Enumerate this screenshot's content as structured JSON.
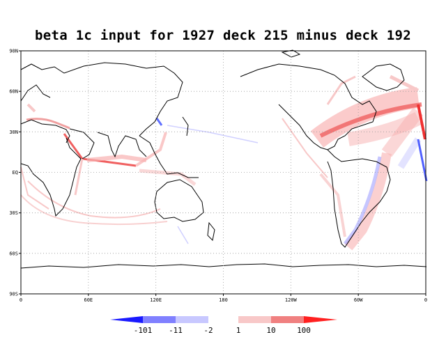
{
  "title": "beta 1c input for 1927 deck 215 minus deck 192",
  "lat_ticks": [
    "90N",
    "60N",
    "30N",
    "EQ",
    "30S",
    "60S",
    "90S"
  ],
  "lon_ticks": [
    "0",
    "60E",
    "120E",
    "180",
    "120W",
    "60W",
    "0"
  ],
  "colorbar": {
    "labels": [
      "-101",
      "-11",
      "-2",
      "1",
      "10",
      "100"
    ],
    "colors": [
      "#1a1aff",
      "#8080ff",
      "#c8c8ff",
      "#f8c8c8",
      "#f08080",
      "#ff2020"
    ]
  },
  "colors": {
    "gridline": "#999999",
    "coast": "#000000",
    "positive": "#ff3030",
    "negative": "#5060ff"
  }
}
